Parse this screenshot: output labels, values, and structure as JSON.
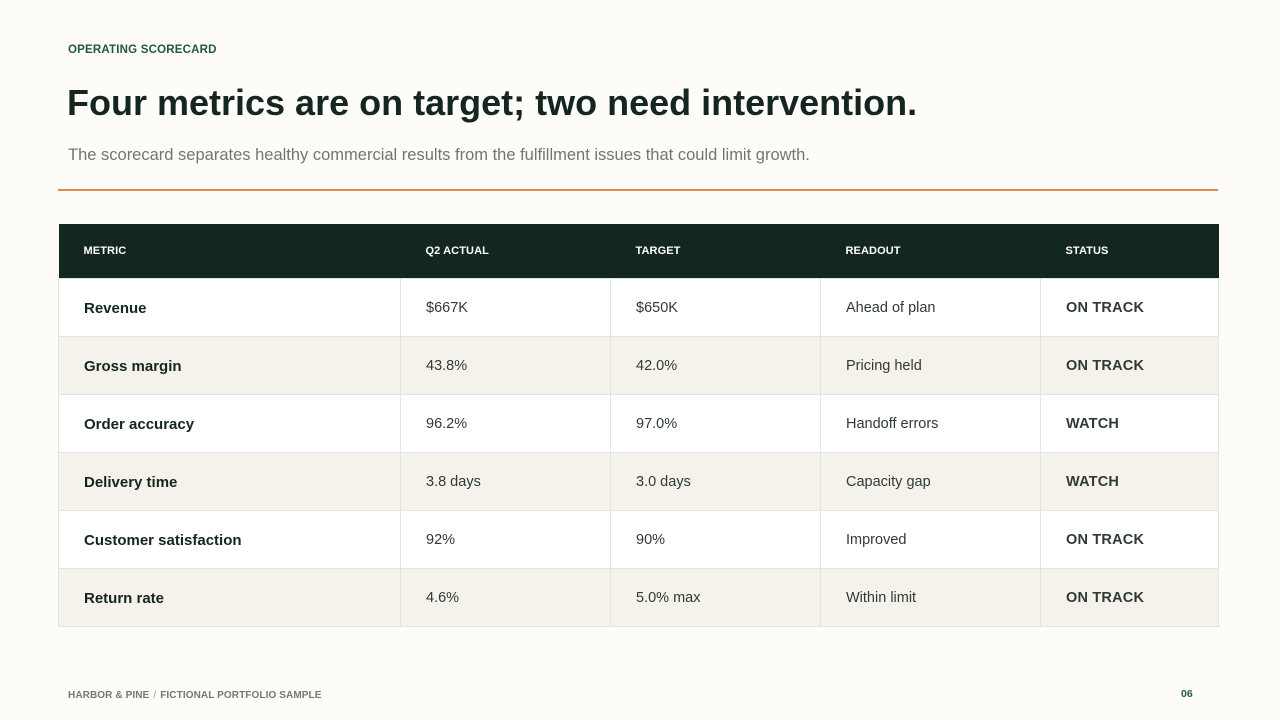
{
  "eyebrow": "OPERATING SCORECARD",
  "title": "Four metrics are on target; two need intervention.",
  "subtitle": "The scorecard separates healthy commercial results from the fulfillment issues that could limit growth.",
  "table": {
    "headers": [
      "METRIC",
      "Q2 ACTUAL",
      "TARGET",
      "READOUT",
      "STATUS"
    ],
    "rows": [
      {
        "metric": "Revenue",
        "actual": "$667K",
        "target": "$650K",
        "readout": "Ahead of plan",
        "status": "ON TRACK",
        "status_kind": "on-track"
      },
      {
        "metric": "Gross margin",
        "actual": "43.8%",
        "target": "42.0%",
        "readout": "Pricing held",
        "status": "ON TRACK",
        "status_kind": "on-track"
      },
      {
        "metric": "Order accuracy",
        "actual": "96.2%",
        "target": "97.0%",
        "readout": "Handoff errors",
        "status": "WATCH",
        "status_kind": "watch"
      },
      {
        "metric": "Delivery time",
        "actual": "3.8 days",
        "target": "3.0 days",
        "readout": "Capacity gap",
        "status": "WATCH",
        "status_kind": "watch"
      },
      {
        "metric": "Customer satisfaction",
        "actual": "92%",
        "target": "90%",
        "readout": "Improved",
        "status": "ON TRACK",
        "status_kind": "on-track"
      },
      {
        "metric": "Return rate",
        "actual": "4.6%",
        "target": "5.0% max",
        "readout": "Within limit",
        "status": "ON TRACK",
        "status_kind": "on-track"
      }
    ]
  },
  "footer": {
    "brand": "HARBOR & PINE",
    "separator": "/",
    "note": "FICTIONAL PORTFOLIO SAMPLE",
    "page_number": "06"
  },
  "colors": {
    "background": "#fdfcf8",
    "header_bg": "#14271f",
    "accent_rule": "#df8a52",
    "on_track": "#2f6a4c",
    "watch": "#e0854a",
    "alt_row": "#f5f2ec"
  }
}
